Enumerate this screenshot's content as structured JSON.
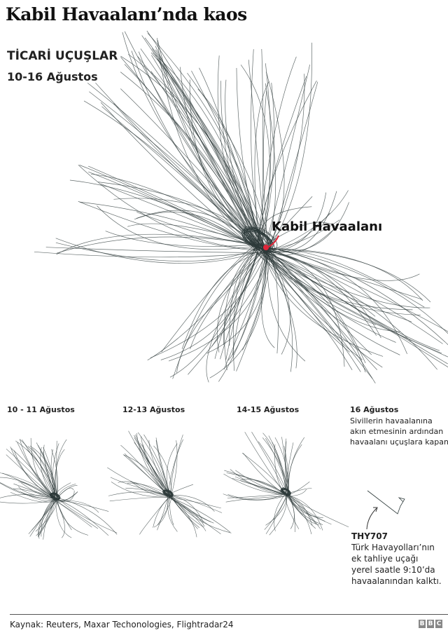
{
  "title": "Kabil Havaalanı’nda kaos",
  "subtitle": "TİCARİ UÇUŞLAR",
  "dates": "10-16 Ağustos",
  "airport_label": "Kabil Havaalanı",
  "colors": {
    "paths": "#2d3a3a",
    "airport_marker": "#e0263a"
  },
  "panels": [
    {
      "title": "10 - 11 Ağustos"
    },
    {
      "title": "12-13 Ağustos"
    },
    {
      "title": "14-15 Ağustos"
    },
    {
      "title": "16 Ağustos",
      "text": [
        "Sivillerin havaalanına",
        "akın etmesinin ardından",
        "havaalanı uçuşlara kapandı"
      ]
    }
  ],
  "note": {
    "flight": "THY707",
    "lines": [
      "Türk Havayolları’nın",
      "ek tahliye uçağı",
      "yerel saatle 9:10’da",
      "havaalanından kalktı."
    ]
  },
  "source": "Kaynak: Reuters, Maxar Techonologies, Flightradar24",
  "logo": "BBC"
}
